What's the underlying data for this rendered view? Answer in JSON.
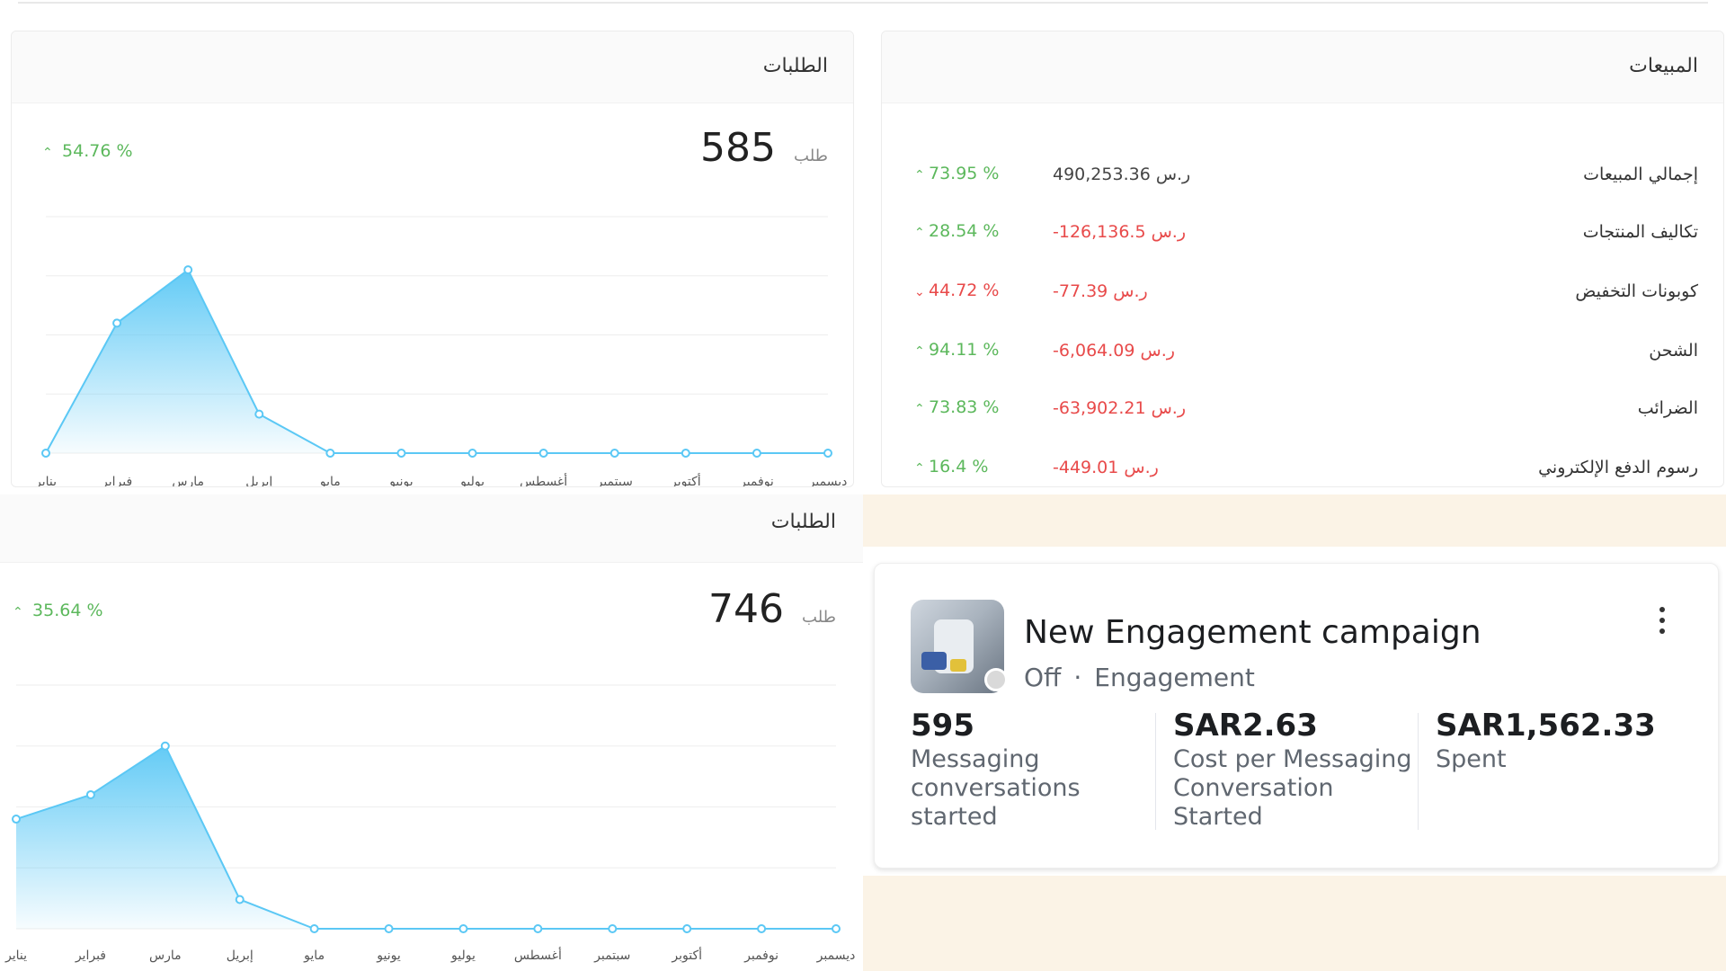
{
  "sales": {
    "title": "المبيعات",
    "rows": [
      {
        "label": "إجمالي المبيعات",
        "value": "490,253.36 ر.س",
        "value_tone": "normal",
        "pct": "73.95 %",
        "direction": "up",
        "tone": "positive"
      },
      {
        "label": "تكاليف المنتجات",
        "value": "-126,136.5 ر.س",
        "value_tone": "negative",
        "pct": "28.54 %",
        "direction": "up",
        "tone": "positive"
      },
      {
        "label": "كوبونات التخفيض",
        "value": "-77.39 ر.س",
        "value_tone": "negative",
        "pct": "44.72 %",
        "direction": "down",
        "tone": "negative"
      },
      {
        "label": "الشحن",
        "value": "-6,064.09 ر.س",
        "value_tone": "negative",
        "pct": "94.11 %",
        "direction": "up",
        "tone": "positive"
      },
      {
        "label": "الضرائب",
        "value": "-63,902.21 ر.س",
        "value_tone": "negative",
        "pct": "73.83 %",
        "direction": "up",
        "tone": "positive"
      },
      {
        "label": "رسوم الدفع الإلكتروني",
        "value": "-449.01 ر.س",
        "value_tone": "negative",
        "pct": "16.4 %",
        "direction": "up",
        "tone": "positive"
      }
    ]
  },
  "orders_top": {
    "title": "الطلبات",
    "total": "585",
    "unit": "طلب",
    "pct": "54.76 %",
    "direction": "up"
  },
  "orders_bottom": {
    "title": "الطلبات",
    "total": "746",
    "unit": "طلب",
    "pct": "35.64 %",
    "direction": "up"
  },
  "chart_data": [
    {
      "type": "area",
      "categories": [
        "يناير",
        "فبراير",
        "مارس",
        "إبريل",
        "مايو",
        "يونيو",
        "يوليو",
        "أغسطس",
        "سبتمبر",
        "أكتوبر",
        "نوفمبر",
        "ديسمبر"
      ],
      "series": [
        {
          "values": [
            0,
            110,
            155,
            33,
            0,
            0,
            0,
            0,
            0,
            0,
            0,
            0
          ]
        }
      ],
      "ylim": [
        0,
        200
      ],
      "grid": true,
      "color": "#5bc8f5"
    },
    {
      "type": "area",
      "categories": [
        "يناير",
        "فبراير",
        "مارس",
        "إبريل",
        "مايو",
        "يونيو",
        "يوليو",
        "أغسطس",
        "سبتمبر",
        "أكتوبر",
        "نوفمبر",
        "ديسمبر"
      ],
      "series": [
        {
          "values": [
            180,
            220,
            300,
            48,
            0,
            0,
            0,
            0,
            0,
            0,
            0,
            0
          ]
        }
      ],
      "ylim": [
        0,
        400
      ],
      "grid": true,
      "color": "#5bc8f5"
    }
  ],
  "campaign": {
    "title": "New Engagement campaign",
    "status": "Off",
    "separator": "·",
    "objective": "Engagement",
    "metrics": [
      {
        "value": "595",
        "label": "Messaging conversations started"
      },
      {
        "value": "SAR2.63",
        "label": "Cost per Messaging Conversation Started"
      },
      {
        "value": "SAR1,562.33",
        "label": "Spent"
      }
    ]
  },
  "colors": {
    "positive": "#5cb85c",
    "negative": "#e84a4a",
    "chart": "#5bc8f5",
    "pattern_bg": "#fbf3e6"
  },
  "icons": {
    "up": "chevron-up-icon",
    "down": "chevron-down-icon",
    "more": "more-vertical-icon"
  }
}
